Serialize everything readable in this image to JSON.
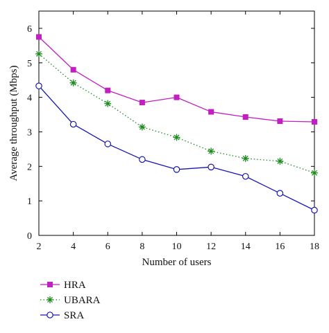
{
  "chart_data": {
    "type": "line",
    "xlabel": "Number of users",
    "ylabel": "Average throughput (Mbps)",
    "x": [
      2,
      4,
      6,
      8,
      10,
      12,
      14,
      16,
      18
    ],
    "xlim": [
      2,
      18
    ],
    "ylim": [
      0,
      6.5
    ],
    "xticks": [
      2,
      4,
      6,
      8,
      10,
      12,
      14,
      16,
      18
    ],
    "yticks": [
      0,
      1,
      2,
      3,
      4,
      5,
      6
    ],
    "grid": false,
    "legend_position": "bottom-left, below plot",
    "series": [
      {
        "name": "HRA",
        "values": [
          5.75,
          4.8,
          4.2,
          3.85,
          4.0,
          3.58,
          3.43,
          3.31,
          3.29
        ],
        "color": "#c21ec2",
        "line_style": "solid",
        "marker": "filled-square"
      },
      {
        "name": "UBARA",
        "values": [
          5.26,
          4.42,
          3.82,
          3.14,
          2.84,
          2.44,
          2.23,
          2.15,
          1.81
        ],
        "color": "#1a8a1a",
        "line_style": "dotted",
        "marker": "asterisk"
      },
      {
        "name": "SRA",
        "values": [
          4.33,
          3.22,
          2.65,
          2.2,
          1.91,
          1.98,
          1.71,
          1.22,
          0.73
        ],
        "color": "#1515b5",
        "line_style": "solid",
        "marker": "open-circle"
      }
    ]
  }
}
